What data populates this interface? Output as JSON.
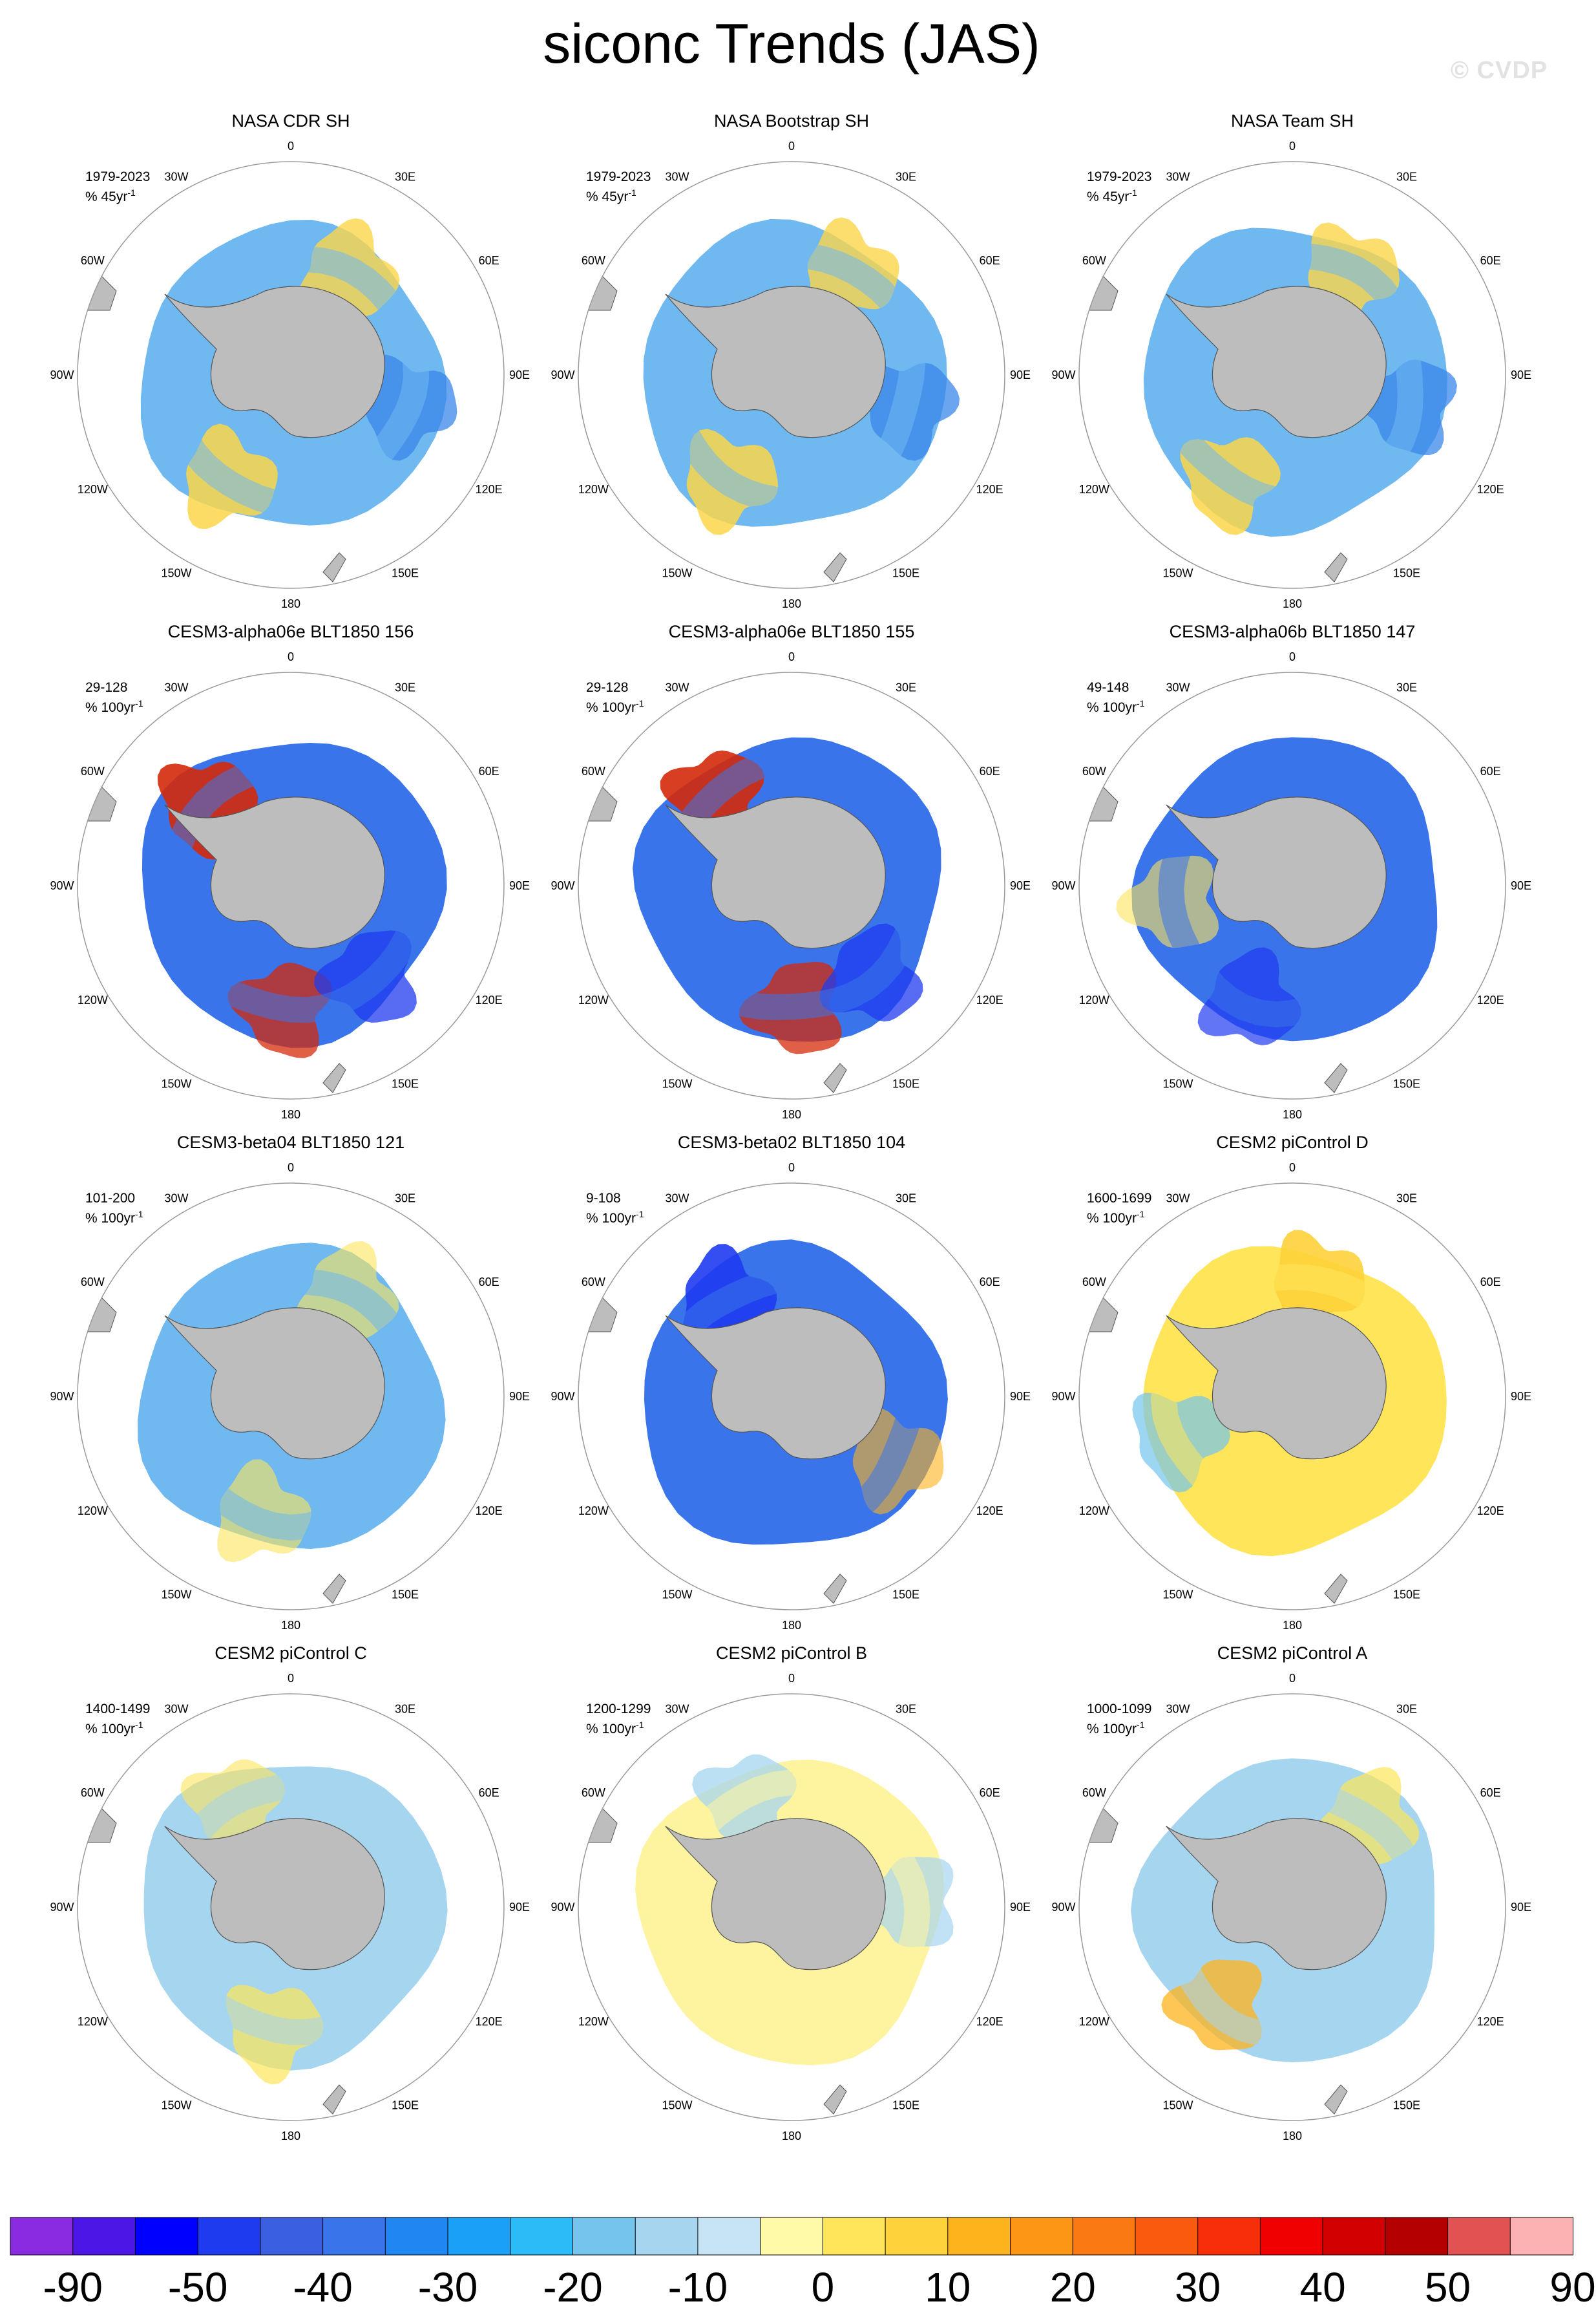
{
  "title": "siconc Trends (JAS)",
  "watermark": "© CVDP",
  "longitude_labels": [
    "0",
    "30E",
    "60E",
    "90E",
    "120E",
    "150E",
    "180",
    "150W",
    "120W",
    "90W",
    "60W",
    "30W"
  ],
  "panels": [
    {
      "title": "NASA CDR SH",
      "period": "1979-2023",
      "units": "% 45yr",
      "units_sup": "-1"
    },
    {
      "title": "NASA Bootstrap SH",
      "period": "1979-2023",
      "units": "% 45yr",
      "units_sup": "-1"
    },
    {
      "title": "NASA Team SH",
      "period": "1979-2023",
      "units": "% 45yr",
      "units_sup": "-1"
    },
    {
      "title": "CESM3-alpha06e BLT1850 156",
      "period": "29-128",
      "units": "% 100yr",
      "units_sup": "-1"
    },
    {
      "title": "CESM3-alpha06e BLT1850 155",
      "period": "29-128",
      "units": "% 100yr",
      "units_sup": "-1"
    },
    {
      "title": "CESM3-alpha06b BLT1850 147",
      "period": "49-148",
      "units": "% 100yr",
      "units_sup": "-1"
    },
    {
      "title": "CESM3-beta04 BLT1850 121",
      "period": "101-200",
      "units": "% 100yr",
      "units_sup": "-1"
    },
    {
      "title": "CESM3-beta02 BLT1850 104",
      "period": "9-108",
      "units": "% 100yr",
      "units_sup": "-1"
    },
    {
      "title": "CESM2 piControl D",
      "period": "1600-1699",
      "units": "% 100yr",
      "units_sup": "-1"
    },
    {
      "title": "CESM2 piControl C",
      "period": "1400-1499",
      "units": "% 100yr",
      "units_sup": "-1"
    },
    {
      "title": "CESM2 piControl B",
      "period": "1200-1299",
      "units": "% 100yr",
      "units_sup": "-1"
    },
    {
      "title": "CESM2 piControl A",
      "period": "1000-1099",
      "units": "% 100yr",
      "units_sup": "-1"
    }
  ],
  "chart_data": {
    "type": "heatmap",
    "projection": "south polar stereographic",
    "variable": "siconc",
    "season": "JAS",
    "colorbar": {
      "labels": [
        "-90",
        "-50",
        "-40",
        "-30",
        "-20",
        "-10",
        "0",
        "10",
        "20",
        "30",
        "40",
        "50",
        "90"
      ],
      "colors": [
        "#8a2be2",
        "#4b16e6",
        "#0000ff",
        "#1f3bef",
        "#3a5fe0",
        "#3a74ea",
        "#1f86f2",
        "#1aa0f6",
        "#2bbcf7",
        "#74c4ee",
        "#a6d5ef",
        "#c6e4f6",
        "#fefaa8",
        "#fee55a",
        "#fed23a",
        "#fdb31c",
        "#fd9615",
        "#fb7912",
        "#f95a0e",
        "#f72e0a",
        "#f00000",
        "#d20000",
        "#b40000",
        "#e25252",
        "#fcb2b2"
      ]
    },
    "panel_patterns": [
      [
        [
          "#6fb8f0",
          0.0,
          0.0,
          0.95
        ],
        [
          "#fbd64a",
          0.5,
          0.2,
          0.8
        ],
        [
          "#fbd64a",
          3.7,
          0.2,
          0.85
        ],
        [
          "#3a86ea",
          1.8,
          0.15,
          0.75
        ]
      ],
      [
        [
          "#6fb8f0",
          0.0,
          0.0,
          0.95
        ],
        [
          "#fbd64a",
          0.5,
          0.2,
          0.8
        ],
        [
          "#fbd64a",
          3.7,
          0.2,
          0.85
        ],
        [
          "#3a86ea",
          1.8,
          0.15,
          0.75
        ]
      ],
      [
        [
          "#6fb8f0",
          0.0,
          0.0,
          0.95
        ],
        [
          "#fbd64a",
          0.5,
          0.2,
          0.8
        ],
        [
          "#fbd64a",
          3.7,
          0.2,
          0.85
        ],
        [
          "#3a86ea",
          1.8,
          0.15,
          0.75
        ]
      ],
      [
        [
          "#3a74ea",
          0.0,
          0.0,
          0.9
        ],
        [
          "#d42a0a",
          5.5,
          0.1,
          0.9
        ],
        [
          "#d42a0a",
          3.2,
          0.1,
          0.75
        ],
        [
          "#1f3bef",
          2.4,
          0.1,
          0.75
        ]
      ],
      [
        [
          "#3a74ea",
          0.0,
          0.0,
          0.9
        ],
        [
          "#d42a0a",
          5.6,
          0.1,
          0.9
        ],
        [
          "#d42a0a",
          3.1,
          0.1,
          0.75
        ],
        [
          "#1f3bef",
          2.4,
          0.1,
          0.75
        ]
      ],
      [
        [
          "#3a74ea",
          0.0,
          0.0,
          0.9
        ],
        [
          "#fee55a",
          4.6,
          0.2,
          0.6
        ],
        [
          "#1f3bef",
          3.5,
          0.1,
          0.7
        ]
      ],
      [
        [
          "#6fb8f0",
          0.0,
          0.0,
          0.9
        ],
        [
          "#fee55a",
          0.5,
          0.15,
          0.6
        ],
        [
          "#fee55a",
          3.4,
          0.15,
          0.6
        ]
      ],
      [
        [
          "#3a74ea",
          0.0,
          0.0,
          0.95
        ],
        [
          "#1f3bef",
          5.7,
          0.1,
          0.9
        ],
        [
          "#fdb31c",
          2.1,
          0.1,
          0.6
        ]
      ],
      [
        [
          "#fee55a",
          0.0,
          0.0,
          0.9
        ],
        [
          "#fed23a",
          0.2,
          0.2,
          0.9
        ],
        [
          "#74c4ee",
          4.4,
          0.1,
          0.7
        ]
      ],
      [
        [
          "#a6d5ef",
          0.0,
          0.0,
          0.95
        ],
        [
          "#fee55a",
          3.3,
          0.25,
          0.7
        ],
        [
          "#fee55a",
          5.8,
          0.25,
          0.6
        ]
      ],
      [
        [
          "#fef4a0",
          0.0,
          0.0,
          0.9
        ],
        [
          "#a6d5ef",
          5.9,
          0.2,
          0.75
        ],
        [
          "#a6d5ef",
          1.5,
          0.15,
          0.7
        ]
      ],
      [
        [
          "#a6d5ef",
          0.0,
          0.0,
          0.95
        ],
        [
          "#fdb31c",
          3.8,
          0.15,
          0.75
        ],
        [
          "#fee55a",
          0.7,
          0.2,
          0.7
        ]
      ]
    ]
  }
}
